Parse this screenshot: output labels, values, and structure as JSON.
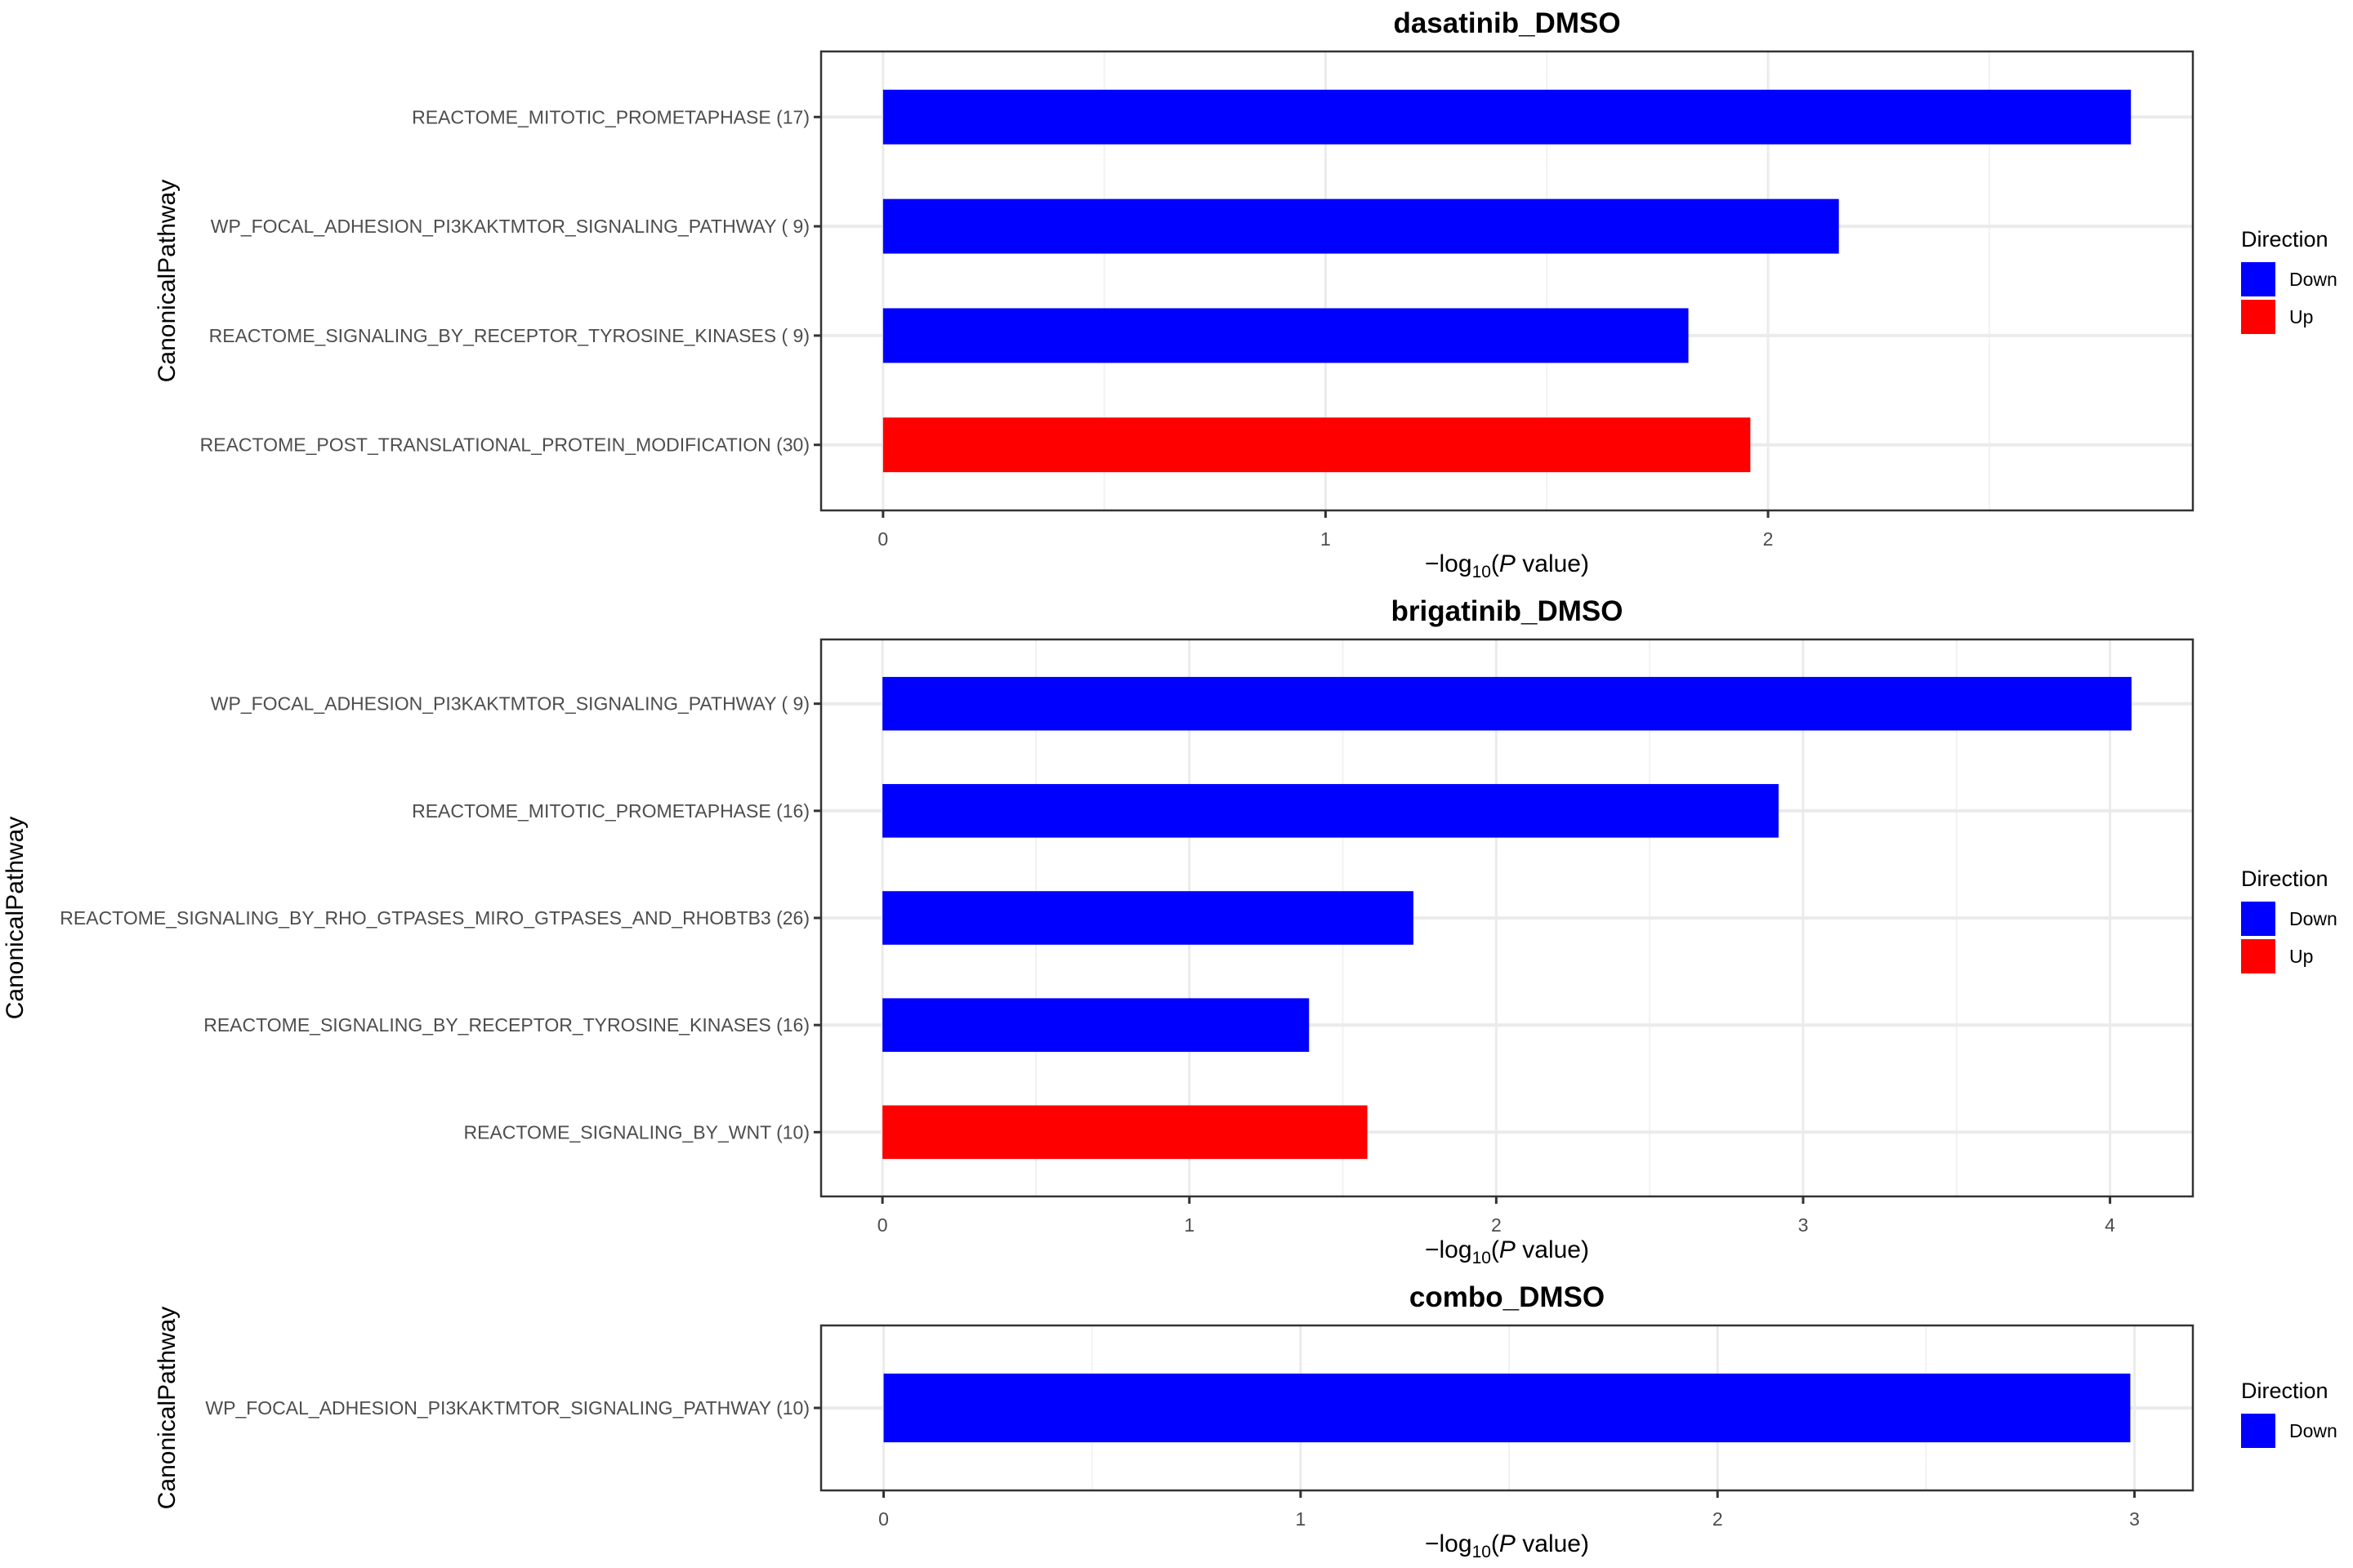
{
  "figure": {
    "type": "faceted horizontal bar charts"
  },
  "colors": {
    "Down": "#0000ff",
    "Up": "#ff0000",
    "panel_border": "#333333",
    "grid_major": "#ebebeb",
    "grid_minor": "#f2f2f2",
    "tick_text": "#4d4d4d"
  },
  "chart_data": [
    {
      "type": "bar",
      "orientation": "horizontal",
      "title": "dasatinib_DMSO",
      "xlabel": "-log10(P value)",
      "ylabel": "CanonicalPathway",
      "xlim": [
        -0.14,
        2.96
      ],
      "xticks": [
        0,
        1,
        2
      ],
      "grid": true,
      "legend": {
        "title": "Direction",
        "entries": [
          "Down",
          "Up"
        ],
        "placement": "right"
      },
      "categories": [
        "REACTOME_MITOTIC_PROMETAPHASE (17)",
        "WP_FOCAL_ADHESION_PI3KAKTMTOR_SIGNALING_PATHWAY ( 9)",
        "REACTOME_SIGNALING_BY_RECEPTOR_TYROSINE_KINASES ( 9)",
        "REACTOME_POST_TRANSLATIONAL_PROTEIN_MODIFICATION (30)"
      ],
      "values": [
        2.82,
        2.16,
        1.82,
        1.96
      ],
      "direction": [
        "Down",
        "Down",
        "Down",
        "Up"
      ]
    },
    {
      "type": "bar",
      "orientation": "horizontal",
      "title": "brigatinib_DMSO",
      "xlabel": "-log10(P value)",
      "ylabel": "CanonicalPathway",
      "xlim": [
        -0.2,
        4.27
      ],
      "xticks": [
        0,
        1,
        2,
        3,
        4
      ],
      "grid": true,
      "legend": {
        "title": "Direction",
        "entries": [
          "Down",
          "Up"
        ],
        "placement": "right"
      },
      "categories": [
        "WP_FOCAL_ADHESION_PI3KAKTMTOR_SIGNALING_PATHWAY ( 9)",
        "REACTOME_MITOTIC_PROMETAPHASE (16)",
        "REACTOME_SIGNALING_BY_RHO_GTPASES_MIRO_GTPASES_AND_RHOBTB3 (26)",
        "REACTOME_SIGNALING_BY_RECEPTOR_TYROSINE_KINASES (16)",
        "REACTOME_SIGNALING_BY_WNT (10)"
      ],
      "values": [
        4.07,
        2.92,
        1.73,
        1.39,
        1.58
      ],
      "direction": [
        "Down",
        "Down",
        "Down",
        "Down",
        "Up"
      ]
    },
    {
      "type": "bar",
      "orientation": "horizontal",
      "title": "combo_DMSO",
      "xlabel": "-log10(P value)",
      "ylabel": "CanonicalPathway",
      "xlim": [
        -0.15,
        3.14
      ],
      "xticks": [
        0,
        1,
        2,
        3
      ],
      "grid": true,
      "legend": {
        "title": "Direction",
        "entries": [
          "Down"
        ],
        "placement": "right"
      },
      "categories": [
        "WP_FOCAL_ADHESION_PI3KAKTMTOR_SIGNALING_PATHWAY (10)"
      ],
      "values": [
        2.99
      ],
      "direction": [
        "Down"
      ]
    }
  ]
}
